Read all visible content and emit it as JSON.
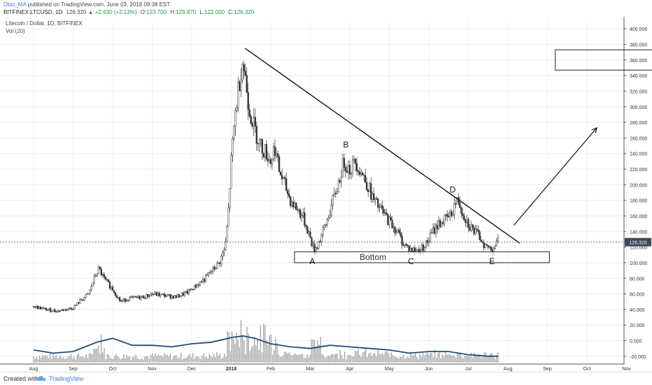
{
  "header": {
    "author": "Dbtc_MA",
    "published": "published on TradingView.com, June 03, 2018 09:38 EST",
    "symbol": "BITFINEX:LTCUSD, 1D",
    "last": "126.320",
    "change": "▲ +2.630 (+2.13%)",
    "o_label": "O:",
    "o_val": "123.700",
    "h_label": "H:",
    "h_val": "129.870",
    "l_label": "L:",
    "l_val": "122.000",
    "c_label": "C:",
    "c_val": "126.320"
  },
  "legend": {
    "title": "Litecoin / Dollar, 1D, BITFINEX",
    "indicator": "Vol (20)"
  },
  "footer": {
    "created_with": "Created with",
    "brand": "TradingView"
  },
  "colors": {
    "up": "#1b9a46",
    "candle": "#333333",
    "volume": "#8a8a8a",
    "vol_ma": "#1f4e79",
    "price_tag": "#3a4a5c",
    "accent_link": "#3b7fd1"
  },
  "chart_data": {
    "type": "candlestick",
    "title": "Litecoin / Dollar, 1D, BITFINEX",
    "y_axis_side": "right",
    "ylim": [
      -30,
      410
    ],
    "yticks": [
      -20,
      0,
      20,
      40,
      60,
      80,
      100,
      120,
      140,
      160,
      180,
      200,
      220,
      240,
      260,
      280,
      300,
      320,
      340,
      360,
      380,
      400
    ],
    "ytick_labels": [
      "-20.000",
      "0.000",
      "20.000",
      "40.000",
      "60.000",
      "80.000",
      "100.000",
      "120.000",
      "140.000",
      "160.000",
      "180.000",
      "200.000",
      "220.000",
      "240.000",
      "260.000",
      "280.000",
      "300.000",
      "320.000",
      "340.000",
      "360.000",
      "380.000",
      "400.000"
    ],
    "x_labels": [
      "Aug",
      "Sep",
      "Oct",
      "Nov",
      "Dec",
      "2018",
      "Feb",
      "Mar",
      "Apr",
      "May",
      "Jun",
      "Jul",
      "Aug",
      "Sep",
      "Oct",
      "Nov"
    ],
    "x_label_months": [
      0,
      1,
      2,
      3,
      4,
      5,
      6,
      7,
      8,
      9,
      10,
      11,
      12,
      13,
      14,
      15
    ],
    "current_price": 126.32,
    "current_price_label": "126.320",
    "price_path": [
      [
        0,
        44
      ],
      [
        0.3,
        40
      ],
      [
        0.6,
        38
      ],
      [
        1.0,
        42
      ],
      [
        1.2,
        52
      ],
      [
        1.4,
        60
      ],
      [
        1.55,
        82
      ],
      [
        1.65,
        92
      ],
      [
        1.8,
        78
      ],
      [
        2.0,
        66
      ],
      [
        2.2,
        50
      ],
      [
        2.4,
        54
      ],
      [
        2.6,
        55
      ],
      [
        2.8,
        56
      ],
      [
        3.0,
        60
      ],
      [
        3.3,
        58
      ],
      [
        3.6,
        56
      ],
      [
        3.9,
        62
      ],
      [
        4.1,
        70
      ],
      [
        4.35,
        80
      ],
      [
        4.55,
        92
      ],
      [
        4.7,
        100
      ],
      [
        4.85,
        120
      ],
      [
        4.92,
        160
      ],
      [
        5.0,
        230
      ],
      [
        5.1,
        290
      ],
      [
        5.2,
        330
      ],
      [
        5.28,
        360
      ],
      [
        5.35,
        340
      ],
      [
        5.45,
        300
      ],
      [
        5.6,
        270
      ],
      [
        5.75,
        250
      ],
      [
        5.9,
        240
      ],
      [
        6.0,
        230
      ],
      [
        6.1,
        250
      ],
      [
        6.2,
        220
      ],
      [
        6.35,
        200
      ],
      [
        6.5,
        180
      ],
      [
        6.65,
        170
      ],
      [
        6.8,
        160
      ],
      [
        6.95,
        140
      ],
      [
        7.1,
        115
      ],
      [
        7.25,
        130
      ],
      [
        7.4,
        150
      ],
      [
        7.55,
        175
      ],
      [
        7.7,
        200
      ],
      [
        7.85,
        230
      ],
      [
        8.0,
        220
      ],
      [
        8.15,
        230
      ],
      [
        8.3,
        215
      ],
      [
        8.45,
        200
      ],
      [
        8.6,
        180
      ],
      [
        8.75,
        170
      ],
      [
        8.9,
        160
      ],
      [
        9.05,
        150
      ],
      [
        9.2,
        140
      ],
      [
        9.35,
        125
      ],
      [
        9.5,
        118
      ],
      [
        9.65,
        115
      ],
      [
        9.8,
        118
      ],
      [
        9.95,
        125
      ],
      [
        10.1,
        140
      ],
      [
        10.25,
        150
      ],
      [
        10.4,
        155
      ],
      [
        10.55,
        160
      ],
      [
        10.65,
        175
      ],
      [
        10.75,
        180
      ],
      [
        10.85,
        165
      ],
      [
        11.0,
        150
      ],
      [
        11.15,
        140
      ],
      [
        11.3,
        132
      ],
      [
        11.45,
        120
      ],
      [
        11.6,
        118
      ],
      [
        11.75,
        126.32
      ]
    ],
    "volume_path": [
      [
        0,
        -12
      ],
      [
        0.5,
        -16
      ],
      [
        1.0,
        -14
      ],
      [
        1.6,
        -2
      ],
      [
        2.0,
        3
      ],
      [
        2.5,
        -6
      ],
      [
        3.0,
        -6
      ],
      [
        3.5,
        -8
      ],
      [
        4.0,
        -4
      ],
      [
        4.5,
        -2
      ],
      [
        5.0,
        4
      ],
      [
        5.3,
        6
      ],
      [
        5.6,
        3
      ],
      [
        6.0,
        -4
      ],
      [
        6.5,
        -8
      ],
      [
        7.0,
        -10
      ],
      [
        7.5,
        -6
      ],
      [
        8.0,
        -8
      ],
      [
        8.5,
        -10
      ],
      [
        9.0,
        -12
      ],
      [
        9.5,
        -16
      ],
      [
        10.0,
        -14
      ],
      [
        10.5,
        -14
      ],
      [
        11.0,
        -18
      ],
      [
        11.5,
        -20
      ],
      [
        11.75,
        -20
      ]
    ],
    "annotations": {
      "trendline": {
        "from": [
          5.35,
          375
        ],
        "to": [
          12.3,
          125
        ]
      },
      "bottom_zone": {
        "x1": 6.6,
        "x2": 13.05,
        "y_top": 114,
        "y_bottom": 100,
        "label": "Bottom"
      },
      "points": [
        {
          "label": "A",
          "x": 7.05,
          "y": 98
        },
        {
          "label": "B",
          "x": 7.9,
          "y": 248
        },
        {
          "label": "C",
          "x": 9.55,
          "y": 98
        },
        {
          "label": "D",
          "x": 10.6,
          "y": 190
        },
        {
          "label": "E",
          "x": 11.6,
          "y": 98
        }
      ],
      "arrow": {
        "from": [
          12.15,
          148
        ],
        "to": [
          14.25,
          273
        ]
      },
      "target_box": {
        "x1": 13.2,
        "x2": 16.15,
        "y_top": 373,
        "y_bottom": 347
      }
    }
  }
}
